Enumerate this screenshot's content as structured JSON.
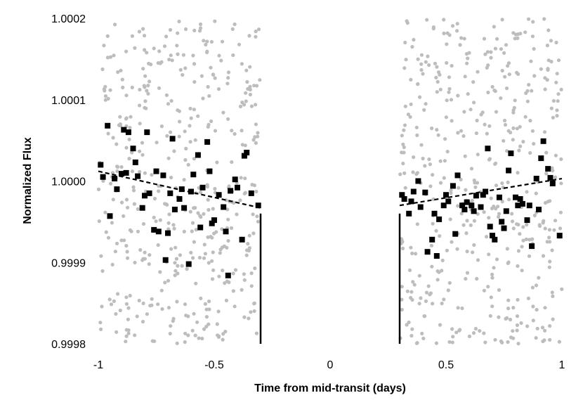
{
  "chart_data": {
    "type": "scatter",
    "title": "",
    "xlabel": "Time from mid-transit (days)",
    "ylabel": "Normalized Flux",
    "xlim": [
      -1,
      1
    ],
    "ylim": [
      0.9998,
      1.0002
    ],
    "x_ticks": [
      "-1",
      "-0.5",
      "0",
      "0.5",
      "1"
    ],
    "y_ticks": [
      "0.9998",
      "0.9999",
      "1.0000",
      "1.0001",
      "1.0002"
    ],
    "grid": false,
    "legend": "none",
    "colors": {
      "raw": "#bdbdbd",
      "binned": "#000000",
      "model": "#000000"
    },
    "series": [
      {
        "style": "grey-dots",
        "note_ranges": "dense uniform scatter of raw points spanning x in [-1,-0.3] and [0.3,1], y across full range",
        "density": 900,
        "x_ranges": [
          [
            -1,
            -0.3
          ],
          [
            0.3,
            1
          ]
        ],
        "y_range": [
          0.9998,
          1.0002
        ]
      },
      {
        "style": "black-squares",
        "points": [
          [
            -0.99,
            1.00002
          ],
          [
            -0.98,
            1.000005
          ],
          [
            -0.96,
            1.000068
          ],
          [
            -0.95,
            0.999957
          ],
          [
            -0.93,
            1.000003
          ],
          [
            -0.92,
            0.99999
          ],
          [
            -0.9,
            1.000009
          ],
          [
            -0.89,
            1.000063
          ],
          [
            -0.88,
            1.00001
          ],
          [
            -0.87,
            1.00006
          ],
          [
            -0.85,
            1.00004
          ],
          [
            -0.84,
            1.000023
          ],
          [
            -0.83,
            1.000006
          ],
          [
            -0.81,
            0.999967
          ],
          [
            -0.8,
            0.999982
          ],
          [
            -0.79,
            1.00006
          ],
          [
            -0.78,
            0.999985
          ],
          [
            -0.76,
            0.99994
          ],
          [
            -0.75,
            1.000012
          ],
          [
            -0.74,
            0.999938
          ],
          [
            -0.72,
            1.000007
          ],
          [
            -0.71,
            0.999903
          ],
          [
            -0.7,
            0.999936
          ],
          [
            -0.69,
            0.999985
          ],
          [
            -0.68,
            1.000052
          ],
          [
            -0.67,
            0.999965
          ],
          [
            -0.65,
            0.999978
          ],
          [
            -0.64,
            0.99999
          ],
          [
            -0.63,
            0.999967
          ],
          [
            -0.61,
            0.999898
          ],
          [
            -0.6,
            0.999987
          ],
          [
            -0.59,
            1.000008
          ],
          [
            -0.57,
            1.000032
          ],
          [
            -0.56,
            0.999943
          ],
          [
            -0.55,
            0.999992
          ],
          [
            -0.53,
            1.000048
          ],
          [
            -0.52,
            1.000012
          ],
          [
            -0.51,
            0.999948
          ],
          [
            -0.5,
            0.999952
          ],
          [
            -0.48,
            0.999983
          ],
          [
            -0.46,
            0.999968
          ],
          [
            -0.45,
            0.999938
          ],
          [
            -0.44,
            0.999884
          ],
          [
            -0.43,
            0.999988
          ],
          [
            -0.41,
            1.000002
          ],
          [
            -0.4,
            0.999992
          ],
          [
            -0.38,
            0.999928
          ],
          [
            -0.37,
            1.000031
          ],
          [
            -0.36,
            1.000035
          ],
          [
            -0.34,
            0.999985
          ],
          [
            -0.31,
            0.99997
          ],
          [
            0.31,
            0.999983
          ],
          [
            0.32,
            0.999978
          ],
          [
            0.34,
            0.99996
          ],
          [
            0.35,
            0.999975
          ],
          [
            0.36,
            0.999987
          ],
          [
            0.38,
            1.0
          ],
          [
            0.39,
            0.999968
          ],
          [
            0.41,
            0.999986
          ],
          [
            0.42,
            0.999913
          ],
          [
            0.44,
            0.999928
          ],
          [
            0.45,
            0.99996
          ],
          [
            0.46,
            0.999908
          ],
          [
            0.47,
            0.999953
          ],
          [
            0.49,
            0.99997
          ],
          [
            0.5,
            0.999983
          ],
          [
            0.51,
            0.999975
          ],
          [
            0.53,
            0.999994
          ],
          [
            0.54,
            0.999935
          ],
          [
            0.55,
            1.000007
          ],
          [
            0.57,
            0.99997
          ],
          [
            0.58,
            0.999965
          ],
          [
            0.59,
            0.999974
          ],
          [
            0.61,
            0.99997
          ],
          [
            0.62,
            0.999963
          ],
          [
            0.63,
            0.999982
          ],
          [
            0.65,
            0.999968
          ],
          [
            0.66,
            0.999983
          ],
          [
            0.67,
            0.999987
          ],
          [
            0.68,
            1.00004
          ],
          [
            0.69,
            0.999944
          ],
          [
            0.7,
            0.999933
          ],
          [
            0.71,
            0.999928
          ],
          [
            0.73,
            0.99998
          ],
          [
            0.74,
            0.99995
          ],
          [
            0.75,
            0.999942
          ],
          [
            0.76,
            0.999963
          ],
          [
            0.77,
            1.000013
          ],
          [
            0.78,
            1.000034
          ],
          [
            0.8,
            0.99998
          ],
          [
            0.81,
            0.99997
          ],
          [
            0.82,
            0.999978
          ],
          [
            0.83,
            0.999972
          ],
          [
            0.85,
            0.999952
          ],
          [
            0.86,
            0.99997
          ],
          [
            0.87,
            0.99992
          ],
          [
            0.89,
            1.000003
          ],
          [
            0.9,
            0.999965
          ],
          [
            0.91,
            1.000028
          ],
          [
            0.92,
            1.000049
          ],
          [
            0.94,
            1.000015
          ],
          [
            0.95,
            1.000004
          ],
          [
            0.96,
            0.999997
          ],
          [
            0.99,
            0.999933
          ]
        ]
      },
      {
        "style": "dashed-line",
        "segments": [
          [
            [
              -1,
              1.000012
            ],
            [
              -0.3,
              0.999967
            ]
          ],
          [
            [
              0.3,
              0.99997
            ],
            [
              1,
              1.000003
            ]
          ]
        ]
      },
      {
        "style": "solid-line",
        "segments": [
          [
            [
              -0.3,
              0.9998
            ],
            [
              -0.3,
              0.99996
            ]
          ],
          [
            [
              0.3,
              0.9998
            ],
            [
              0.3,
              0.99996
            ]
          ]
        ]
      }
    ]
  }
}
